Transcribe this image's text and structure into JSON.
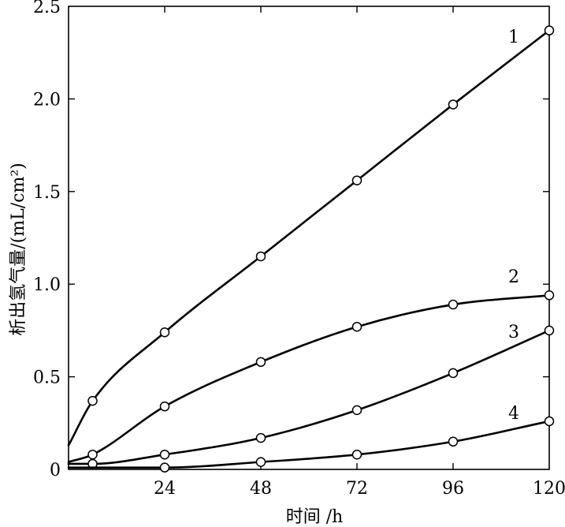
{
  "chart_data": {
    "type": "line",
    "title": "",
    "xlabel": "时间 /h",
    "ylabel": "析出氢气量/(mL/cm²)",
    "xlim": [
      0,
      120
    ],
    "ylim": [
      0,
      2.5
    ],
    "xticks": [
      "24",
      "48",
      "72",
      "96",
      "120"
    ],
    "yticks": [
      "0",
      "0.5",
      "1.0",
      "1.5",
      "2.0",
      "2.5"
    ],
    "grid": false,
    "legend": "none",
    "series": [
      {
        "label": "1",
        "x": [
          0,
          6,
          24,
          48,
          72,
          96,
          120
        ],
        "y": [
          0.13,
          0.37,
          0.74,
          1.15,
          1.56,
          1.97,
          2.37
        ]
      },
      {
        "label": "2",
        "x": [
          0,
          6,
          24,
          48,
          72,
          96,
          120
        ],
        "y": [
          0.04,
          0.08,
          0.34,
          0.58,
          0.77,
          0.89,
          0.94
        ]
      },
      {
        "label": "3",
        "x": [
          0,
          6,
          24,
          48,
          72,
          96,
          120
        ],
        "y": [
          0.03,
          0.03,
          0.08,
          0.17,
          0.32,
          0.52,
          0.75
        ]
      },
      {
        "label": "4",
        "x": [
          0,
          24,
          48,
          72,
          96,
          120
        ],
        "y": [
          0.01,
          0.01,
          0.04,
          0.08,
          0.15,
          0.26
        ]
      }
    ]
  }
}
